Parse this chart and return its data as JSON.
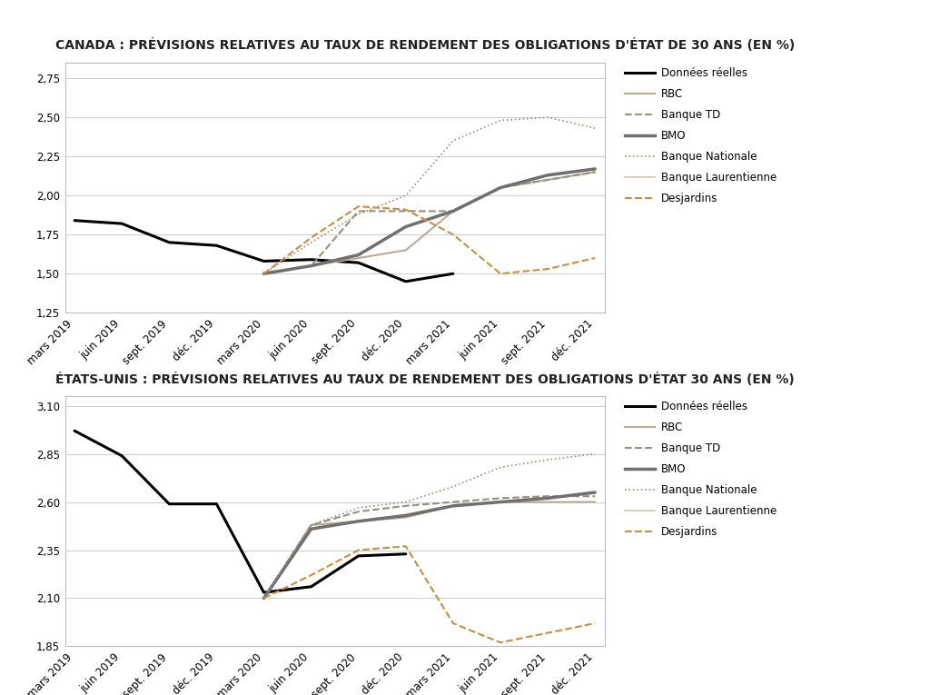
{
  "title1": "CANADA : PRÉVISIONS RELATIVES AU TAUX DE RENDEMENT DES OBLIGATIONS D'ÉTAT DE 30 ANS (EN %)",
  "title2": "ÉTATS-UNIS : PRÉVISIONS RELATIVES AU TAUX DE RENDEMENT DES OBLIGATIONS D'ÉTAT 30 ANS (EN %)",
  "x_labels": [
    "mars 2019",
    "juin 2019",
    "sept. 2019",
    "déc. 2019",
    "mars 2020",
    "juin 2020",
    "sept. 2020",
    "déc. 2020",
    "mars 2021",
    "juin 2021",
    "sept. 2021",
    "déc. 2021"
  ],
  "legend_labels": [
    "Données réelles",
    "RBC",
    "Banque TD",
    "BMO",
    "Banque Nationale",
    "Banque Laurentienne",
    "Desjardins"
  ],
  "canada": {
    "donnees_reelles": [
      1.84,
      1.82,
      1.7,
      1.68,
      1.58,
      1.59,
      1.57,
      1.45,
      1.5,
      null,
      null,
      null
    ],
    "rbc": [
      null,
      null,
      null,
      null,
      1.5,
      1.55,
      1.6,
      1.65,
      1.9,
      2.05,
      2.1,
      2.15
    ],
    "banque_td": [
      null,
      null,
      null,
      null,
      1.5,
      1.55,
      1.9,
      1.9,
      1.9,
      2.05,
      2.1,
      2.15
    ],
    "bmo": [
      null,
      null,
      null,
      null,
      1.5,
      1.55,
      1.62,
      1.8,
      1.9,
      2.05,
      2.13,
      2.17
    ],
    "banque_nationale": [
      null,
      null,
      null,
      null,
      1.5,
      1.7,
      1.88,
      2.0,
      2.35,
      2.48,
      2.5,
      2.43
    ],
    "banque_laurentienne": [
      null,
      null,
      null,
      null,
      null,
      null,
      null,
      null,
      null,
      null,
      null,
      null
    ],
    "desjardins": [
      null,
      null,
      null,
      null,
      1.5,
      1.73,
      1.93,
      1.91,
      1.75,
      1.5,
      1.53,
      1.6
    ],
    "ylim": [
      1.25,
      2.85
    ],
    "yticks": [
      1.25,
      1.5,
      1.75,
      2.0,
      2.25,
      2.5,
      2.75
    ]
  },
  "usa": {
    "donnees_reelles": [
      2.97,
      2.84,
      2.59,
      2.59,
      2.13,
      2.16,
      2.32,
      2.33,
      null,
      null,
      null,
      null
    ],
    "rbc": [
      null,
      null,
      null,
      null,
      2.1,
      2.48,
      2.5,
      2.52,
      2.58,
      2.6,
      2.6,
      2.6
    ],
    "banque_td": [
      null,
      null,
      null,
      null,
      2.1,
      2.48,
      2.55,
      2.58,
      2.6,
      2.62,
      2.63,
      2.63
    ],
    "bmo": [
      null,
      null,
      null,
      null,
      2.1,
      2.46,
      2.5,
      2.53,
      2.58,
      2.6,
      2.62,
      2.65
    ],
    "banque_nationale": [
      null,
      null,
      null,
      null,
      2.1,
      2.48,
      2.57,
      2.6,
      2.68,
      2.78,
      2.82,
      2.85
    ],
    "banque_laurentienne": [
      null,
      null,
      null,
      null,
      null,
      null,
      null,
      null,
      null,
      null,
      null,
      null
    ],
    "desjardins": [
      null,
      null,
      null,
      null,
      2.1,
      2.22,
      2.35,
      2.37,
      1.97,
      1.87,
      1.92,
      1.97
    ],
    "ylim": [
      1.85,
      3.15
    ],
    "yticks": [
      1.85,
      2.1,
      2.35,
      2.6,
      2.85,
      3.1
    ]
  },
  "colors": {
    "donnees_reelles": "#000000",
    "rbc": "#b8aa96",
    "banque_td": "#9a9080",
    "bmo": "#707070",
    "banque_nationale": "#9a9080",
    "banque_laurentienne": "#d4c8a0",
    "desjardins": "#c8903a"
  },
  "linestyles": {
    "donnees_reelles": "-",
    "rbc": "-",
    "banque_td": "--",
    "bmo": "-",
    "banque_nationale": ":",
    "banque_laurentienne": "-",
    "desjardins": "--"
  },
  "linewidths": {
    "donnees_reelles": 2.2,
    "rbc": 1.5,
    "banque_td": 1.5,
    "bmo": 2.5,
    "banque_nationale": 1.2,
    "banque_laurentienne": 1.2,
    "desjardins": 1.5
  },
  "background_color": "#ffffff",
  "plot_bg": "#ffffff",
  "box_color": "#c0c0c0",
  "title_fontsize": 10.0,
  "tick_fontsize": 8.5,
  "legend_fontsize": 8.5
}
